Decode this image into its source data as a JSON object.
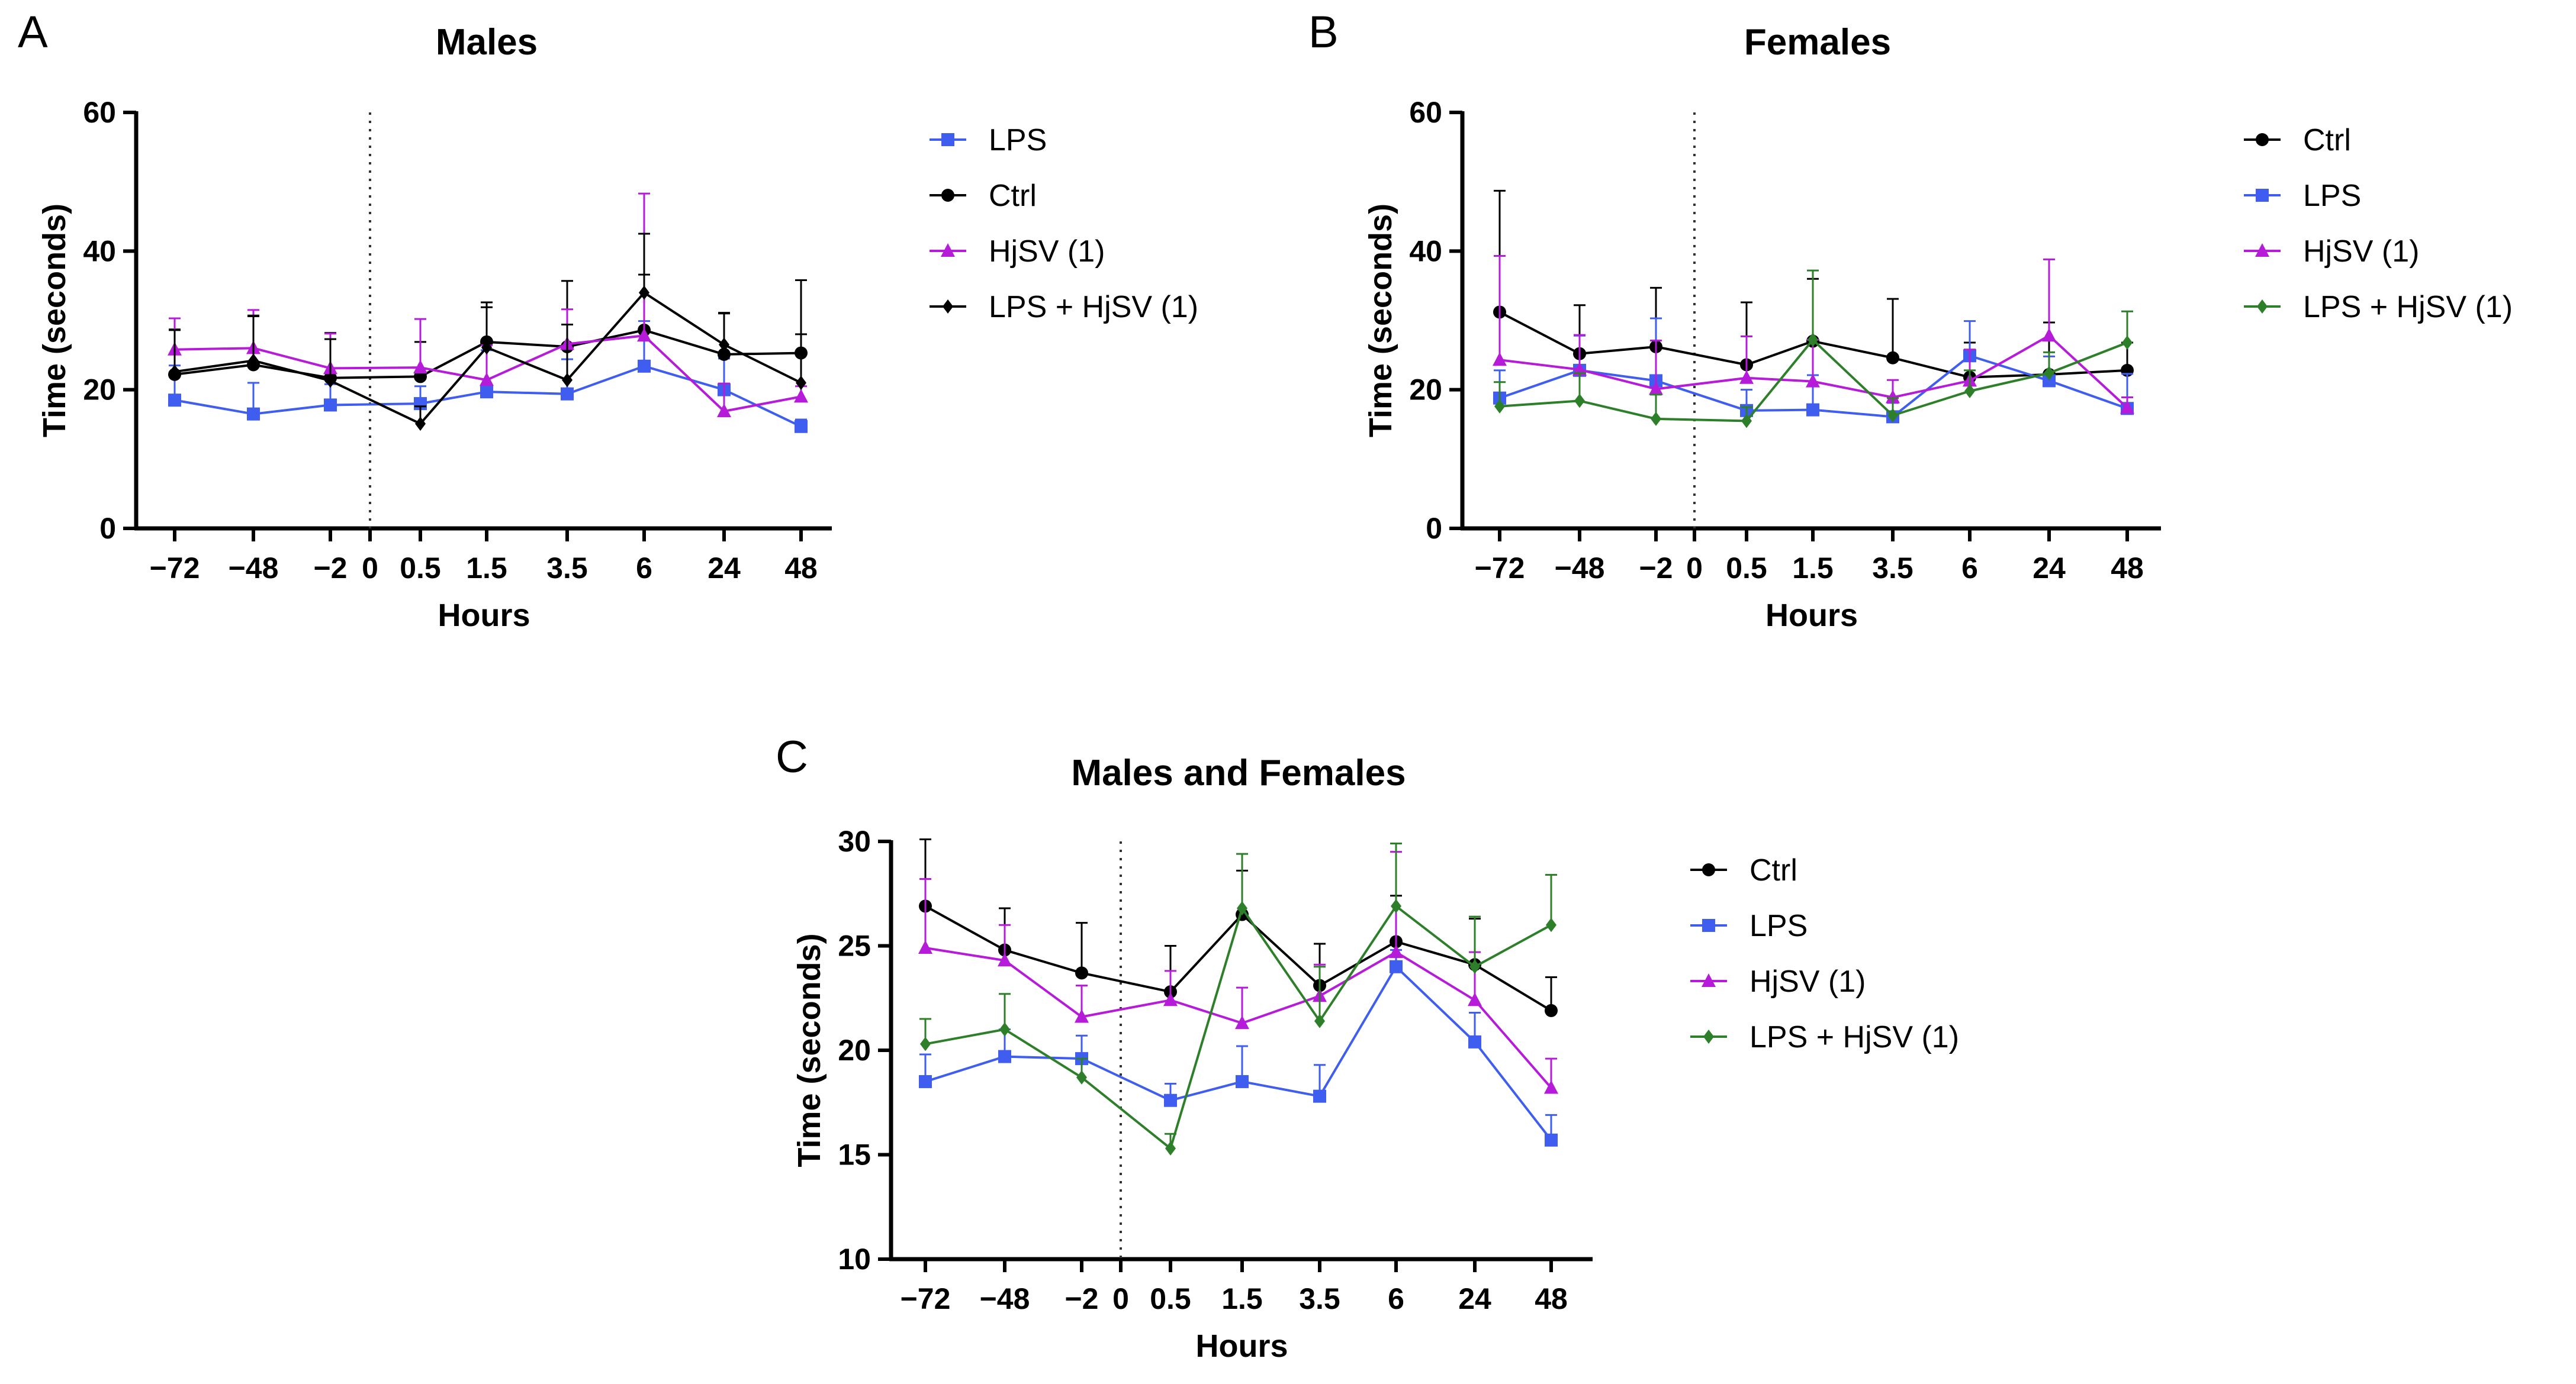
{
  "figure": {
    "colors": {
      "ctrl": "#000000",
      "lps": "#3f5ef0",
      "hjsv": "#b51bd8",
      "combo": "#2e7f2a"
    }
  },
  "chart_data": [
    {
      "panel": "A",
      "type": "line",
      "title": "Males",
      "xlabel": "Hours",
      "ylabel": "Time (seconds)",
      "categories": [
        "−72",
        "−48",
        "−2",
        "0",
        "0.5",
        "1.5",
        "3.5",
        "6",
        "24",
        "48"
      ],
      "ylim": [
        0,
        60
      ],
      "yticks": [
        0,
        20,
        40,
        60
      ],
      "reference_line_at": "0",
      "series": [
        {
          "name": "LPS",
          "key": "lps",
          "marker": "square",
          "values": [
            18.5,
            16.5,
            17.8,
            null,
            18.0,
            19.7,
            19.4,
            23.4,
            20.0,
            14.7
          ],
          "errors": [
            5.0,
            4.5,
            3.0,
            null,
            2.5,
            6.0,
            5.0,
            6.5,
            4.5,
            1.0
          ]
        },
        {
          "name": "Ctrl",
          "key": "ctrl",
          "marker": "circle",
          "values": [
            22.2,
            23.6,
            21.7,
            null,
            21.9,
            26.9,
            26.2,
            28.6,
            25.1,
            25.3
          ],
          "errors": [
            6.5,
            7.0,
            6.5,
            null,
            5.0,
            5.0,
            9.5,
            8.0,
            6.0,
            10.5
          ]
        },
        {
          "name": "HjSV (1)",
          "key": "hjsv",
          "marker": "triangle",
          "values": [
            25.8,
            26.0,
            23.1,
            null,
            23.2,
            21.4,
            26.6,
            27.8,
            16.9,
            19.0
          ],
          "errors": [
            4.5,
            5.5,
            5.0,
            null,
            7.0,
            5.0,
            5.0,
            20.5,
            4.0,
            1.5
          ]
        },
        {
          "name": "LPS + HjSV (1)",
          "key": "ctrl",
          "marker": "diamond",
          "values": [
            22.6,
            24.2,
            21.3,
            null,
            15.1,
            26.1,
            21.4,
            34.0,
            26.5,
            21.0
          ],
          "errors": [
            6.0,
            6.5,
            6.0,
            null,
            2.5,
            6.5,
            8.0,
            8.5,
            4.5,
            7.0
          ]
        }
      ]
    },
    {
      "panel": "B",
      "type": "line",
      "title": "Females",
      "xlabel": "Hours",
      "ylabel": "Time (seconds)",
      "categories": [
        "−72",
        "−48",
        "−2",
        "0",
        "0.5",
        "1.5",
        "3.5",
        "6",
        "24",
        "48"
      ],
      "ylim": [
        0,
        60
      ],
      "yticks": [
        0,
        20,
        40,
        60
      ],
      "reference_line_at": "0",
      "series": [
        {
          "name": "Ctrl",
          "key": "ctrl",
          "marker": "circle",
          "values": [
            31.2,
            25.2,
            26.2,
            null,
            23.6,
            27.0,
            24.6,
            21.8,
            22.2,
            22.8
          ],
          "errors": [
            17.5,
            7.0,
            8.5,
            null,
            9.0,
            9.0,
            8.5,
            5.0,
            7.5,
            4.0
          ]
        },
        {
          "name": "LPS",
          "key": "lps",
          "marker": "square",
          "values": [
            18.8,
            22.8,
            21.3,
            null,
            17.0,
            17.1,
            16.1,
            24.9,
            21.3,
            17.3
          ],
          "errors": [
            4.0,
            5.0,
            9.0,
            null,
            3.0,
            5.0,
            2.0,
            5.0,
            3.5,
            5.0
          ]
        },
        {
          "name": "HjSV (1)",
          "key": "hjsv",
          "marker": "triangle",
          "values": [
            24.3,
            22.9,
            20.1,
            null,
            21.7,
            21.2,
            18.9,
            21.3,
            27.8,
            17.4
          ],
          "errors": [
            15.0,
            5.0,
            7.0,
            null,
            6.0,
            6.0,
            2.5,
            4.5,
            11.0,
            1.5
          ]
        },
        {
          "name": "LPS + HjSV (1)",
          "key": "combo",
          "marker": "diamond",
          "values": [
            17.6,
            18.4,
            15.8,
            null,
            15.5,
            27.2,
            16.3,
            19.8,
            22.4,
            26.8
          ],
          "errors": [
            3.5,
            4.0,
            3.5,
            null,
            2.0,
            10.0,
            2.5,
            3.0,
            3.0,
            4.5
          ]
        }
      ]
    },
    {
      "panel": "C",
      "type": "line",
      "title": "Males and Females",
      "xlabel": "Hours",
      "ylabel": "Time (seconds)",
      "categories": [
        "−72",
        "−48",
        "−2",
        "0",
        "0.5",
        "1.5",
        "3.5",
        "6",
        "24",
        "48"
      ],
      "ylim": [
        10,
        30
      ],
      "yticks": [
        10,
        15,
        20,
        25,
        30
      ],
      "reference_line_at": "0",
      "series": [
        {
          "name": "Ctrl",
          "key": "ctrl",
          "marker": "circle",
          "values": [
            26.9,
            24.8,
            23.7,
            null,
            22.8,
            26.5,
            23.1,
            25.2,
            24.1,
            21.9
          ],
          "errors": [
            3.5,
            2.0,
            2.4,
            null,
            2.2,
            2.1,
            2.0,
            2.2,
            2.2,
            1.6
          ]
        },
        {
          "name": "LPS",
          "key": "lps",
          "marker": "square",
          "values": [
            18.5,
            19.7,
            19.6,
            null,
            17.6,
            18.5,
            17.8,
            24.0,
            20.4,
            15.7
          ],
          "errors": [
            1.3,
            1.3,
            1.1,
            null,
            0.8,
            1.7,
            1.5,
            0.8,
            1.4,
            1.2
          ]
        },
        {
          "name": "HjSV (1)",
          "key": "hjsv",
          "marker": "triangle",
          "values": [
            24.9,
            24.3,
            21.6,
            null,
            22.4,
            21.3,
            22.6,
            24.7,
            22.4,
            18.2
          ],
          "errors": [
            3.3,
            1.7,
            1.5,
            null,
            1.4,
            1.7,
            1.5,
            4.8,
            2.3,
            1.4
          ]
        },
        {
          "name": "LPS + HjSV (1)",
          "key": "combo",
          "marker": "diamond",
          "values": [
            20.3,
            21.0,
            18.7,
            null,
            15.3,
            26.8,
            21.4,
            26.9,
            24.0,
            26.0
          ],
          "errors": [
            1.2,
            1.7,
            0.9,
            null,
            0.7,
            2.6,
            2.6,
            3.0,
            2.4,
            2.4
          ]
        }
      ]
    }
  ]
}
